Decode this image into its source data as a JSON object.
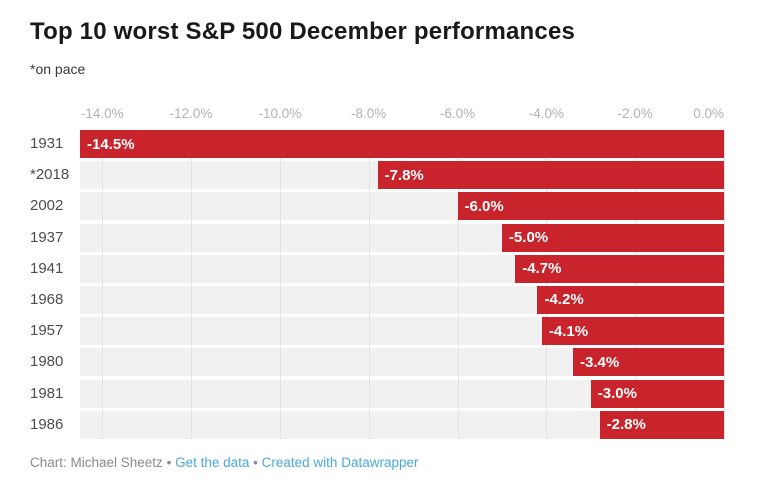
{
  "header": {
    "title": "Top 10 worst S&P 500 December performances",
    "subtitle": "*on pace"
  },
  "footer": {
    "credit": "Chart: Michael Sheetz",
    "separator": "•",
    "link_get_data": "Get the data",
    "link_datawrapper": "Created with Datawrapper"
  },
  "colors": {
    "bar": "#c9232b",
    "track": "#f1f1f1",
    "grid": "#e4e4e4",
    "axis_text": "#b3b3b3",
    "year_text": "#4d4d4d",
    "title_text": "#191919",
    "subtitle_text": "#383838",
    "footer_text": "#8a8a8a",
    "link": "#4aa9de"
  },
  "chart_data": {
    "type": "bar",
    "orientation": "horizontal",
    "title": "Top 10 worst S&P 500 December performances",
    "subtitle": "*on pace",
    "categories": [
      "1931",
      "*2018",
      "2002",
      "1937",
      "1941",
      "1968",
      "1957",
      "1980",
      "1981",
      "1986"
    ],
    "values": [
      -14.5,
      -7.8,
      -6.0,
      -5.0,
      -4.7,
      -4.2,
      -4.1,
      -3.4,
      -3.0,
      -2.8
    ],
    "value_labels": [
      "-14.5%",
      "-7.8%",
      "-6.0%",
      "-5.0%",
      "-4.7%",
      "-4.2%",
      "-4.1%",
      "-3.4%",
      "-3.0%",
      "-2.8%"
    ],
    "xlim": [
      -14.5,
      0
    ],
    "x_ticks": [
      -14,
      -12,
      -10,
      -8,
      -6,
      -4,
      -2,
      0
    ],
    "x_tick_labels": [
      "-14.0%",
      "-12.0%",
      "-10.0%",
      "-8.0%",
      "-6.0%",
      "-4.0%",
      "-2.0%",
      "0.0%"
    ],
    "grid": true,
    "legend": "none",
    "value_label_position": "inside-start",
    "unit": "%"
  }
}
